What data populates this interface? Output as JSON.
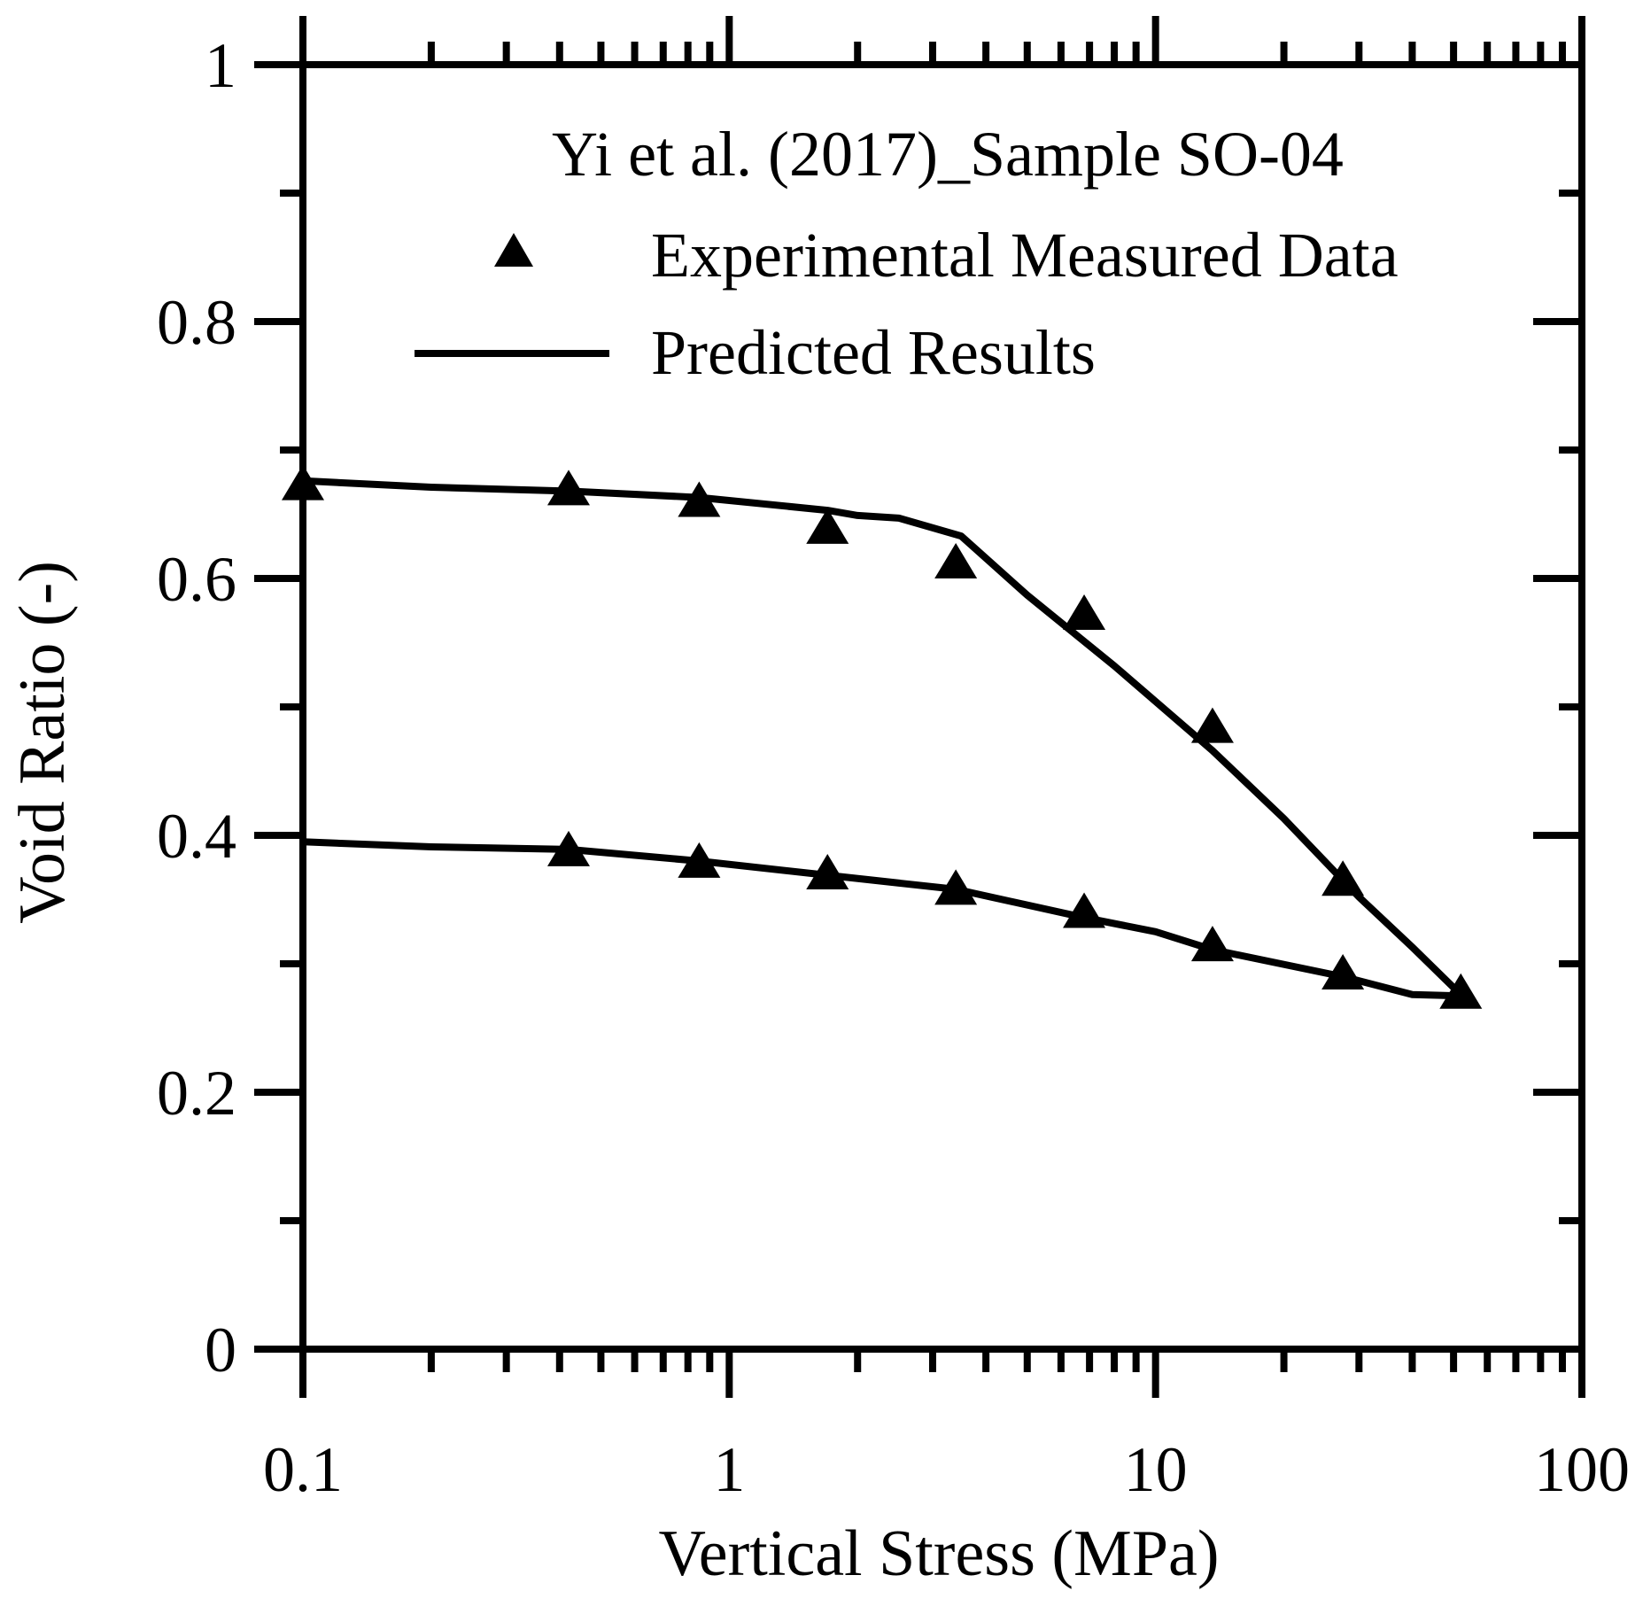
{
  "chart_data": {
    "type": "scatter",
    "title": "",
    "legend_title": "Yi et al. (2017)_Sample SO-04",
    "legend_position": "top-right",
    "xlabel": "Vertical Stress (MPa)",
    "ylabel": "Void Ratio (-)",
    "xscale": "log",
    "xlim": [
      0.1,
      100
    ],
    "ylim": [
      0,
      1
    ],
    "grid": false,
    "x_tick_labels": [
      "0.1",
      "1",
      "10",
      "100"
    ],
    "y_tick_labels": [
      "0",
      "0.2",
      "0.4",
      "0.6",
      "0.8",
      "1"
    ],
    "series": [
      {
        "name": "Experimental Measured Data",
        "marker": "triangle",
        "x": [
          0.1,
          0.42,
          0.85,
          1.7,
          3.4,
          6.8,
          13.6,
          27.5,
          52,
          27.5,
          13.6,
          6.8,
          3.4,
          1.7,
          0.85,
          0.42
        ],
        "y": [
          0.672,
          0.668,
          0.659,
          0.638,
          0.611,
          0.571,
          0.483,
          0.364,
          0.276,
          0.291,
          0.313,
          0.339,
          0.357,
          0.369,
          0.378,
          0.387
        ]
      },
      {
        "name": "Predicted Results",
        "marker": "line",
        "segments": [
          {
            "x": [
              0.1,
              0.2,
              0.42,
              0.85,
              1.7,
              2.0,
              2.5,
              3.5,
              5.0,
              8.0,
              13.6,
              20,
              30,
              40,
              52
            ],
            "y": [
              0.676,
              0.671,
              0.668,
              0.663,
              0.653,
              0.649,
              0.647,
              0.633,
              0.587,
              0.532,
              0.466,
              0.413,
              0.352,
              0.313,
              0.276
            ]
          },
          {
            "x": [
              0.1,
              0.2,
              0.42,
              0.85,
              1.7,
              3.4,
              6.8,
              10,
              13.6,
              27.5,
              40,
              52
            ],
            "y": [
              0.395,
              0.391,
              0.389,
              0.38,
              0.369,
              0.358,
              0.336,
              0.325,
              0.311,
              0.29,
              0.276,
              0.275
            ]
          }
        ]
      }
    ]
  }
}
